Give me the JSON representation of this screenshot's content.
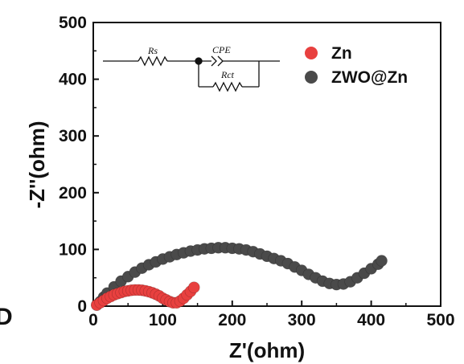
{
  "chart_data": {
    "type": "scatter",
    "xlabel": "Z'(ohm)",
    "ylabel": "-Z''(ohm)",
    "xlim": [
      0,
      500
    ],
    "ylim": [
      0,
      500
    ],
    "x_ticks": [
      "0",
      "100",
      "200",
      "300",
      "400",
      "500"
    ],
    "y_ticks": [
      "0",
      "100",
      "200",
      "300",
      "400",
      "500"
    ],
    "grid": false,
    "legend_position": "top-right",
    "series": [
      {
        "name": "Zn",
        "color": "#e8403f",
        "x": [
          5,
          10,
          15,
          20,
          25,
          30,
          35,
          40,
          45,
          50,
          55,
          60,
          65,
          70,
          75,
          80,
          85,
          90,
          95,
          100,
          105,
          110,
          115,
          120,
          125,
          130,
          135,
          140,
          145
        ],
        "y": [
          2,
          6,
          10,
          14,
          17,
          20,
          22,
          24,
          26,
          27,
          28,
          28.5,
          28.5,
          28,
          27,
          25.5,
          23.5,
          21,
          18,
          14,
          11,
          8,
          6,
          6,
          9,
          14,
          20,
          26,
          33
        ]
      },
      {
        "name": "ZWO@Zn",
        "color": "#4a4a4a",
        "x": [
          5,
          10,
          15,
          20,
          30,
          40,
          50,
          60,
          70,
          80,
          90,
          100,
          110,
          120,
          130,
          140,
          150,
          160,
          170,
          180,
          190,
          200,
          210,
          220,
          230,
          240,
          250,
          260,
          270,
          280,
          290,
          300,
          310,
          320,
          330,
          340,
          350,
          360,
          370,
          380,
          390,
          400,
          410,
          415
        ],
        "y": [
          2,
          8,
          16,
          23,
          34,
          44,
          52,
          60,
          67,
          73,
          78,
          83,
          87,
          91,
          94,
          97,
          99,
          101,
          102,
          103,
          103,
          102,
          101,
          99,
          96,
          92,
          88,
          84,
          80,
          75,
          69,
          63,
          56,
          50,
          44,
          40,
          38,
          39,
          43,
          50,
          58,
          66,
          74,
          80
        ]
      }
    ],
    "inset_circuit": {
      "labels": [
        "Rs",
        "CPE",
        "Rct"
      ]
    }
  },
  "stray_text": "D"
}
